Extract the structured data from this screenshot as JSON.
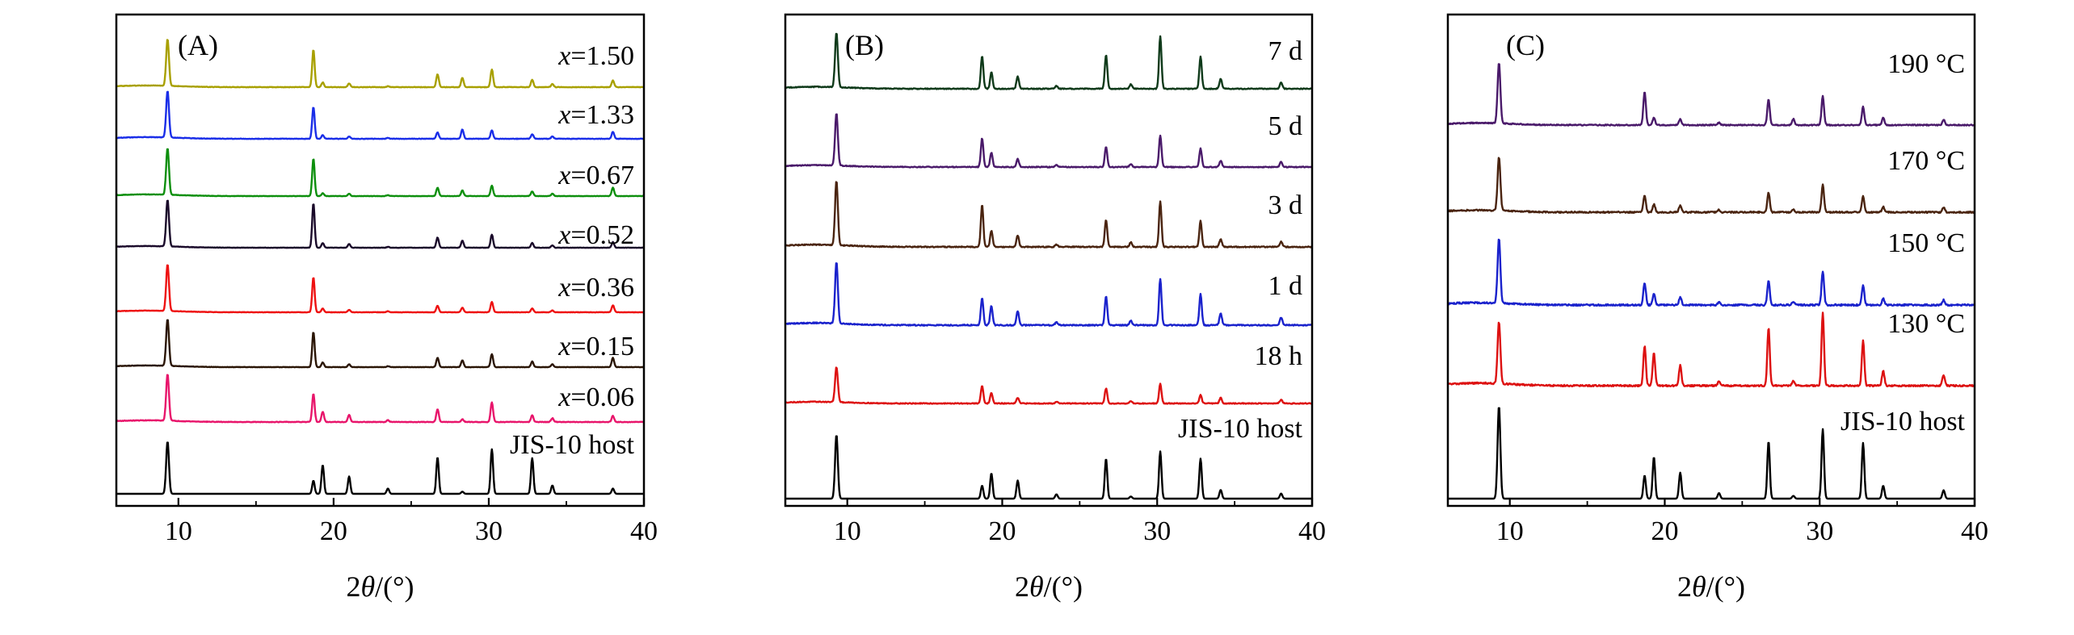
{
  "chart_data": [
    {
      "type": "line",
      "panel_label": "(A)",
      "xlabel_prefix": "2",
      "xlabel_theta": "θ",
      "xlabel_unit": "/(°)",
      "ylabel": "",
      "xlim": [
        6,
        40
      ],
      "x_ticks": [
        10,
        20,
        30,
        40
      ],
      "x_tick_labels": [
        "10",
        "20",
        "30",
        "40"
      ],
      "peak_positions": [
        9.3,
        18.7,
        19.3,
        21.0,
        23.5,
        26.7,
        28.3,
        30.2,
        32.8,
        34.1,
        38.0
      ],
      "series": [
        {
          "name": "JIS-10 host",
          "label_prefix": "",
          "label_value": "JIS-10 host",
          "color": "#000000",
          "intensities": [
            1.0,
            0.25,
            0.55,
            0.33,
            0.1,
            0.7,
            0.04,
            0.85,
            0.68,
            0.16,
            0.1
          ],
          "noise": 0.0
        },
        {
          "name": "x=0.06",
          "label_prefix": "x",
          "label_value": "=0.06",
          "color": "#e8156b",
          "intensities": [
            1.0,
            0.6,
            0.22,
            0.15,
            0.04,
            0.28,
            0.06,
            0.42,
            0.14,
            0.08,
            0.13
          ],
          "noise": 0.35
        },
        {
          "name": "x=0.15",
          "label_prefix": "x",
          "label_value": "=0.15",
          "color": "#2a1505",
          "intensities": [
            1.0,
            0.75,
            0.1,
            0.06,
            0.02,
            0.2,
            0.15,
            0.28,
            0.12,
            0.06,
            0.2
          ],
          "noise": 0.25
        },
        {
          "name": "x=0.36",
          "label_prefix": "x",
          "label_value": "=0.36",
          "color": "#ee1111",
          "intensities": [
            1.0,
            0.75,
            0.08,
            0.05,
            0.02,
            0.14,
            0.1,
            0.22,
            0.08,
            0.04,
            0.15
          ],
          "noise": 0.25
        },
        {
          "name": "x=0.52",
          "label_prefix": "x",
          "label_value": "=0.52",
          "color": "#1a0a2a",
          "intensities": [
            1.0,
            0.95,
            0.1,
            0.08,
            0.02,
            0.22,
            0.15,
            0.28,
            0.1,
            0.05,
            0.12
          ],
          "noise": 0.25
        },
        {
          "name": "x=0.67",
          "label_prefix": "x",
          "label_value": "=0.67",
          "color": "#0d8f0d",
          "intensities": [
            1.0,
            0.8,
            0.06,
            0.05,
            0.02,
            0.18,
            0.12,
            0.22,
            0.1,
            0.05,
            0.18
          ],
          "noise": 0.25
        },
        {
          "name": "x=1.33",
          "label_prefix": "x",
          "label_value": "=1.33",
          "color": "#1a2ee8",
          "intensities": [
            1.0,
            0.68,
            0.08,
            0.05,
            0.02,
            0.14,
            0.2,
            0.18,
            0.1,
            0.05,
            0.15
          ],
          "noise": 0.3
        },
        {
          "name": "x=1.50",
          "label_prefix": "x",
          "label_value": "=1.50",
          "color": "#a8a000",
          "intensities": [
            1.0,
            0.8,
            0.1,
            0.08,
            0.02,
            0.28,
            0.2,
            0.38,
            0.16,
            0.07,
            0.14
          ],
          "noise": 0.3
        }
      ]
    },
    {
      "type": "line",
      "panel_label": "(B)",
      "xlabel_prefix": "2",
      "xlabel_theta": "θ",
      "xlabel_unit": "/(°)",
      "ylabel": "",
      "xlim": [
        6,
        40
      ],
      "x_ticks": [
        10,
        20,
        30,
        40
      ],
      "x_tick_labels": [
        "10",
        "20",
        "30",
        "40"
      ],
      "peak_positions": [
        9.3,
        18.7,
        19.3,
        21.0,
        23.5,
        26.7,
        28.3,
        30.2,
        32.8,
        34.1,
        38.0
      ],
      "series": [
        {
          "name": "JIS-10 host",
          "label_prefix": "",
          "label_value": "JIS-10 host",
          "color": "#000000",
          "intensities": [
            0.88,
            0.18,
            0.35,
            0.25,
            0.06,
            0.55,
            0.03,
            0.65,
            0.55,
            0.12,
            0.07
          ],
          "noise": 0.0
        },
        {
          "name": "18 h",
          "label_prefix": "",
          "label_value": "18 h",
          "color": "#dd1111",
          "intensities": [
            0.75,
            0.38,
            0.22,
            0.12,
            0.04,
            0.32,
            0.05,
            0.42,
            0.18,
            0.12,
            0.08
          ],
          "noise": 0.5
        },
        {
          "name": "1 d",
          "label_prefix": "",
          "label_value": "1 d",
          "color": "#1a22cc",
          "intensities": [
            0.95,
            0.42,
            0.3,
            0.22,
            0.05,
            0.45,
            0.07,
            0.72,
            0.48,
            0.18,
            0.12
          ],
          "noise": 0.5
        },
        {
          "name": "3 d",
          "label_prefix": "",
          "label_value": "3 d",
          "color": "#4a2410",
          "intensities": [
            1.0,
            0.65,
            0.25,
            0.18,
            0.04,
            0.42,
            0.07,
            0.7,
            0.4,
            0.12,
            0.08
          ],
          "noise": 0.45
        },
        {
          "name": "5 d",
          "label_prefix": "",
          "label_value": "5 d",
          "color": "#4a1a6a",
          "intensities": [
            1.0,
            0.55,
            0.28,
            0.15,
            0.04,
            0.38,
            0.06,
            0.6,
            0.35,
            0.12,
            0.1
          ],
          "noise": 0.45
        },
        {
          "name": "7 d",
          "label_prefix": "",
          "label_value": "7 d",
          "color": "#0f3a1a",
          "intensities": [
            1.0,
            0.6,
            0.3,
            0.22,
            0.05,
            0.62,
            0.08,
            0.95,
            0.58,
            0.18,
            0.12
          ],
          "noise": 0.45
        }
      ]
    },
    {
      "type": "line",
      "panel_label": "(C)",
      "xlabel_prefix": "2",
      "xlabel_theta": "θ",
      "xlabel_unit": "/(°)",
      "ylabel": "",
      "xlim": [
        6,
        40
      ],
      "x_ticks": [
        10,
        20,
        30,
        40
      ],
      "x_tick_labels": [
        "10",
        "20",
        "30",
        "40"
      ],
      "peak_positions": [
        9.3,
        18.7,
        19.3,
        21.0,
        23.5,
        26.7,
        28.3,
        30.2,
        32.8,
        34.1,
        38.0
      ],
      "series": [
        {
          "name": "JIS-10 host",
          "label_prefix": "",
          "label_value": "JIS-10 host",
          "color": "#000000",
          "intensities": [
            1.0,
            0.25,
            0.45,
            0.28,
            0.06,
            0.62,
            0.03,
            0.75,
            0.6,
            0.14,
            0.09
          ],
          "noise": 0.0
        },
        {
          "name": "130 °C",
          "label_prefix": "",
          "label_value": "130 °C",
          "color": "#dd1111",
          "intensities": [
            0.85,
            0.55,
            0.45,
            0.28,
            0.06,
            0.8,
            0.07,
            1.0,
            0.62,
            0.2,
            0.15
          ],
          "noise": 0.6
        },
        {
          "name": "150 °C",
          "label_prefix": "",
          "label_value": "150 °C",
          "color": "#1a22cc",
          "intensities": [
            1.0,
            0.35,
            0.18,
            0.12,
            0.04,
            0.38,
            0.05,
            0.52,
            0.3,
            0.1,
            0.08
          ],
          "noise": 0.7
        },
        {
          "name": "170 °C",
          "label_prefix": "",
          "label_value": "170 °C",
          "color": "#4a2410",
          "intensities": [
            0.95,
            0.3,
            0.14,
            0.12,
            0.04,
            0.35,
            0.05,
            0.48,
            0.28,
            0.1,
            0.08
          ],
          "noise": 0.7
        },
        {
          "name": "190 °C",
          "label_prefix": "",
          "label_value": "190 °C",
          "color": "#4a1a6a",
          "intensities": [
            1.0,
            0.55,
            0.12,
            0.1,
            0.04,
            0.42,
            0.1,
            0.48,
            0.3,
            0.12,
            0.09
          ],
          "noise": 0.5
        }
      ]
    }
  ]
}
